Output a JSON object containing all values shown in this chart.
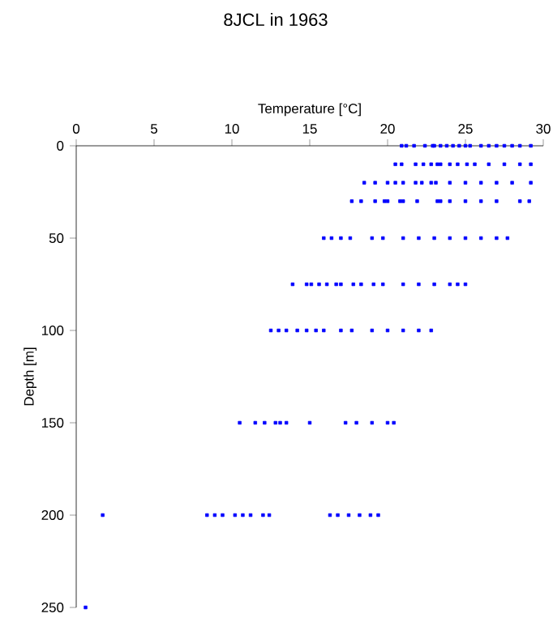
{
  "chart_data": {
    "type": "scatter",
    "title": "8JCL in 1963",
    "xlabel": "Temperature [°C]",
    "ylabel": "Depth [m]",
    "xlim": [
      0,
      30
    ],
    "xticks": [
      0,
      5,
      10,
      15,
      20,
      25,
      30
    ],
    "ylim": [
      250,
      0
    ],
    "yticks": [
      0,
      50,
      100,
      150,
      200,
      250
    ],
    "marker": "square",
    "series": [
      {
        "color": "#0000ff",
        "x": [
          20.9,
          21.2,
          21.7,
          22.4,
          22.9,
          23.0,
          23.4,
          23.8,
          24.2,
          24.6,
          25.0,
          25.3,
          26.0,
          26.5,
          27.0,
          27.5,
          28.0,
          28.5,
          29.2
        ],
        "values": [
          0,
          0,
          0,
          0,
          0,
          0,
          0,
          0,
          0,
          0,
          0,
          0,
          0,
          0,
          0,
          0,
          0,
          0,
          0
        ]
      },
      {
        "color": "#0000ff",
        "x": [
          20.5,
          20.9,
          21.8,
          22.3,
          22.8,
          23.2,
          23.4,
          24.0,
          24.5,
          25.1,
          25.6,
          26.5,
          27.5,
          28.5,
          29.2
        ],
        "values": [
          10,
          10,
          10,
          10,
          10,
          10,
          10,
          10,
          10,
          10,
          10,
          10,
          10,
          10,
          10
        ]
      },
      {
        "color": "#0000ff",
        "x": [
          18.5,
          19.2,
          20.0,
          20.5,
          21.0,
          21.8,
          22.2,
          22.8,
          23.1,
          24.0,
          25.0,
          26.0,
          27.0,
          28.0,
          29.2
        ],
        "values": [
          20,
          20,
          20,
          20,
          20,
          20,
          20,
          20,
          20,
          20,
          20,
          20,
          20,
          20,
          20
        ]
      },
      {
        "color": "#0000ff",
        "x": [
          17.7,
          18.3,
          19.2,
          19.8,
          20.0,
          20.8,
          21.0,
          21.9,
          23.2,
          23.4,
          24.0,
          25.0,
          26.0,
          27.0,
          28.5,
          29.1
        ],
        "values": [
          30,
          30,
          30,
          30,
          30,
          30,
          30,
          30,
          30,
          30,
          30,
          30,
          30,
          30,
          30,
          30
        ]
      },
      {
        "color": "#0000ff",
        "x": [
          15.9,
          16.4,
          17.0,
          17.6,
          19.0,
          19.7,
          21.0,
          22.0,
          23.0,
          24.0,
          25.0,
          26.0,
          27.0,
          27.7
        ],
        "values": [
          50,
          50,
          50,
          50,
          50,
          50,
          50,
          50,
          50,
          50,
          50,
          50,
          50,
          50
        ]
      },
      {
        "color": "#0000ff",
        "x": [
          13.9,
          14.8,
          15.1,
          15.6,
          16.1,
          16.7,
          17.0,
          17.8,
          18.3,
          19.1,
          19.7,
          21.0,
          22.0,
          23.0,
          24.0,
          24.5,
          25.0
        ],
        "values": [
          75,
          75,
          75,
          75,
          75,
          75,
          75,
          75,
          75,
          75,
          75,
          75,
          75,
          75,
          75,
          75,
          75
        ]
      },
      {
        "color": "#0000ff",
        "x": [
          12.5,
          13.0,
          13.5,
          14.2,
          14.8,
          15.4,
          15.9,
          17.0,
          17.7,
          19.0,
          20.0,
          21.0,
          22.0,
          22.8
        ],
        "values": [
          100,
          100,
          100,
          100,
          100,
          100,
          100,
          100,
          100,
          100,
          100,
          100,
          100,
          100
        ]
      },
      {
        "color": "#0000ff",
        "x": [
          10.5,
          11.5,
          12.1,
          12.8,
          13.1,
          13.5,
          15.0,
          17.3,
          18.0,
          19.0,
          20.0,
          20.4
        ],
        "values": [
          150,
          150,
          150,
          150,
          150,
          150,
          150,
          150,
          150,
          150,
          150,
          150
        ]
      },
      {
        "color": "#0000ff",
        "x": [
          1.7,
          8.4,
          8.9,
          9.4,
          10.2,
          10.7,
          11.2,
          12.0,
          12.4,
          16.3,
          16.8,
          17.5,
          18.2,
          18.9,
          19.4
        ],
        "values": [
          200,
          200,
          200,
          200,
          200,
          200,
          200,
          200,
          200,
          200,
          200,
          200,
          200,
          200,
          200
        ]
      },
      {
        "color": "#0000ff",
        "x": [
          0.6
        ],
        "values": [
          250
        ]
      }
    ]
  }
}
